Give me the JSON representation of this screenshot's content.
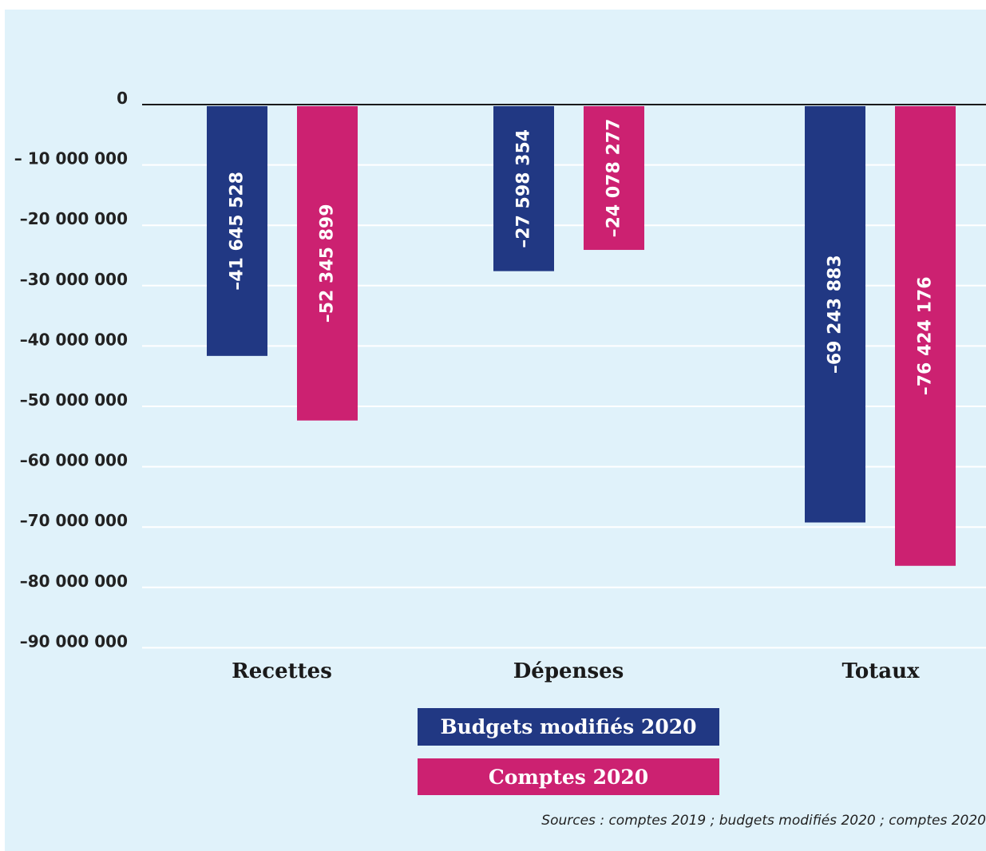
{
  "chart_data": {
    "type": "bar",
    "categories": [
      "Recettes",
      "Dépenses",
      "Totaux"
    ],
    "series": [
      {
        "name": "Budgets modifiés 2020",
        "color": "#213883",
        "values": [
          -41645528,
          -27598354,
          -69243883
        ],
        "labels": [
          "–41 645 528",
          "–27 598 354",
          "–69 243 883"
        ]
      },
      {
        "name": "Comptes 2020",
        "color": "#cc2171",
        "values": [
          -52345899,
          -24078277,
          -76424176
        ],
        "labels": [
          "–52 345 899",
          "–24 078 277",
          "–76 424 176"
        ]
      }
    ],
    "ylim": [
      -90000000,
      0
    ],
    "yticks": [
      0,
      -10000000,
      -20000000,
      -30000000,
      -40000000,
      -50000000,
      -60000000,
      -70000000,
      -80000000,
      -90000000
    ],
    "ytick_labels": [
      "0",
      "– 10 000 000",
      "–20 000 000",
      "–30 000 000",
      "–40 000 000",
      "–50 000 000",
      "–60 000 000",
      "–70 000 000",
      "–80 000 000",
      "–90 000 000"
    ],
    "grid": true,
    "legend_position": "bottom-center",
    "background_color": "#e0f2fa"
  },
  "source_note": "Sources : comptes 2019 ; budgets modifiés 2020 ; comptes 2020"
}
